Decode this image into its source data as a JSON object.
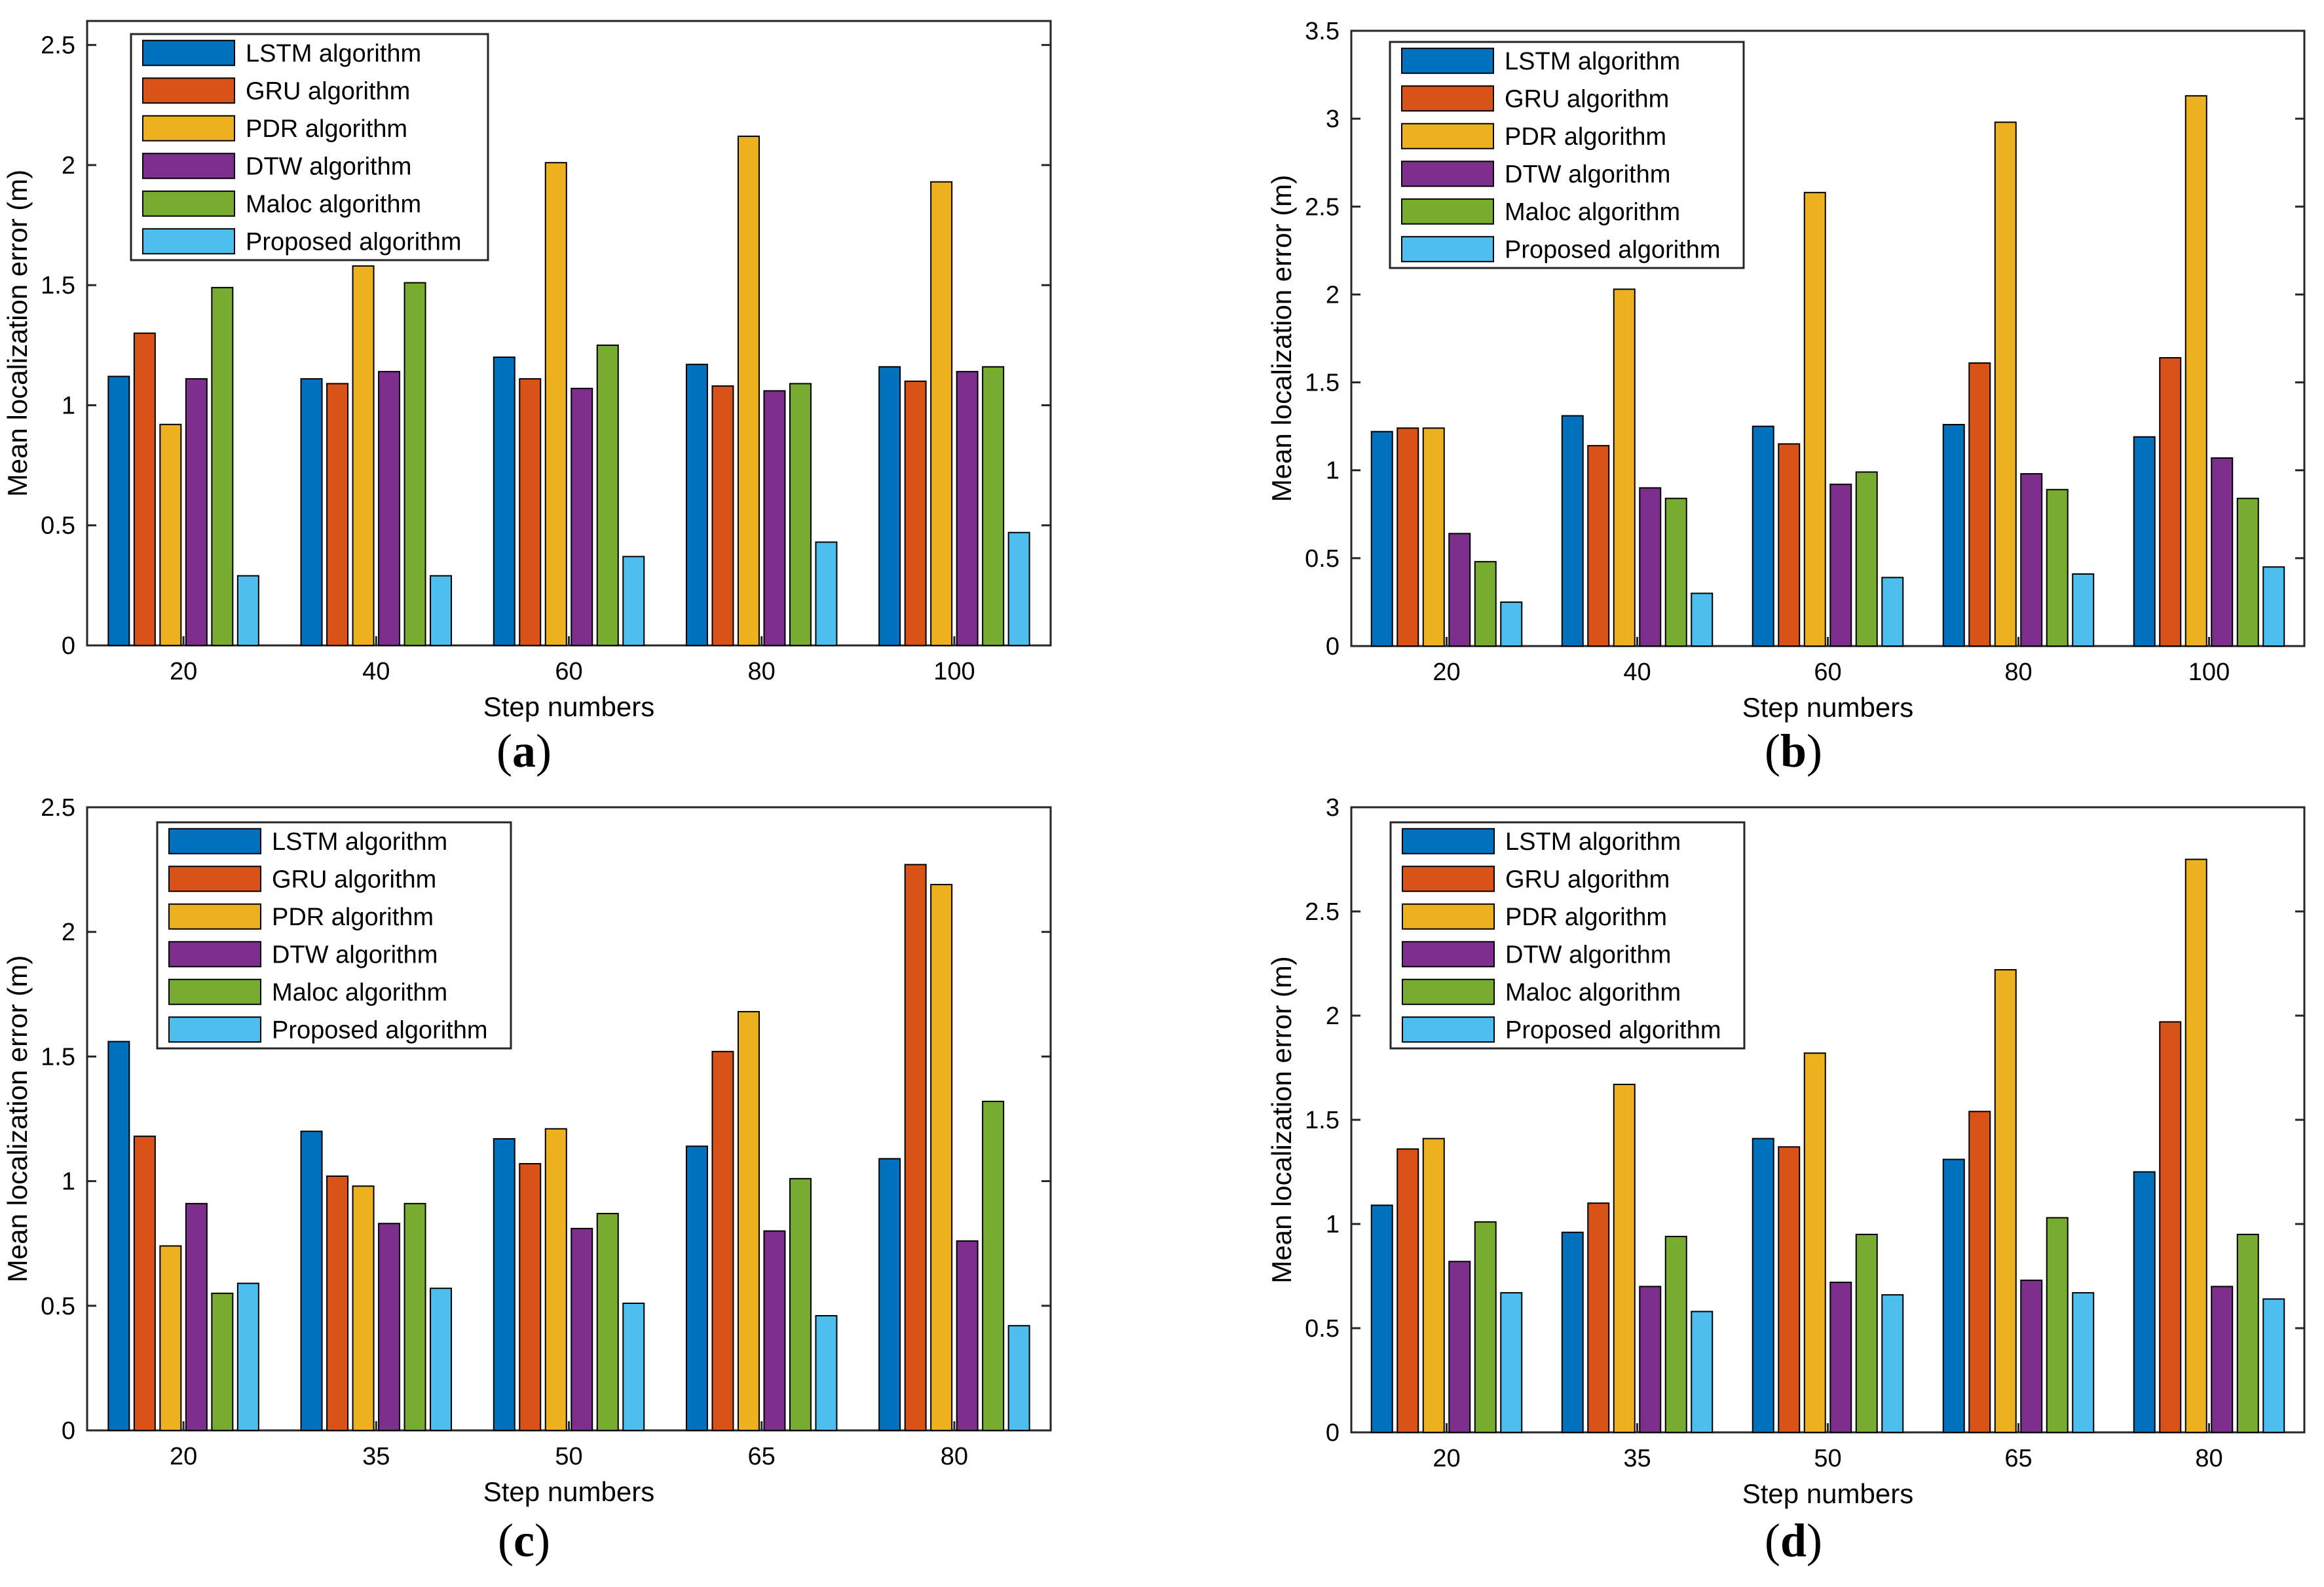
{
  "figure": {
    "colors": {
      "LSTM algorithm": "#0072BD",
      "GRU algorithm": "#D95319",
      "PDR algorithm": "#EDB120",
      "DTW algorithm": "#7E2F8E",
      "Maloc algorithm": "#77AC30",
      "Proposed algorithm": "#4DBEEE"
    }
  },
  "chart_data": [
    {
      "panel": "(a)",
      "type": "bar",
      "xlabel": "Step numbers",
      "ylabel": "Mean localization error (m)",
      "ylim": [
        0,
        2.6
      ],
      "yticks": [
        "0",
        "0.5",
        "1",
        "1.5",
        "2",
        "2.5"
      ],
      "ytick_values": [
        0,
        0.5,
        1,
        1.5,
        2,
        2.5
      ],
      "categories": [
        "20",
        "40",
        "60",
        "80",
        "100"
      ],
      "legend_position": "top-left",
      "series": [
        {
          "name": "LSTM algorithm",
          "values": [
            1.12,
            1.11,
            1.2,
            1.17,
            1.16
          ]
        },
        {
          "name": "GRU algorithm",
          "values": [
            1.3,
            1.09,
            1.11,
            1.08,
            1.1
          ]
        },
        {
          "name": "PDR algorithm",
          "values": [
            0.92,
            1.58,
            2.01,
            2.12,
            1.93
          ]
        },
        {
          "name": "DTW algorithm",
          "values": [
            1.11,
            1.14,
            1.07,
            1.06,
            1.14
          ]
        },
        {
          "name": "Maloc algorithm",
          "values": [
            1.49,
            1.51,
            1.25,
            1.09,
            1.16
          ]
        },
        {
          "name": "Proposed algorithm",
          "values": [
            0.29,
            0.29,
            0.37,
            0.43,
            0.47
          ]
        }
      ]
    },
    {
      "panel": "(b)",
      "type": "bar",
      "xlabel": "Step numbers",
      "ylabel": "Mean localization error (m)",
      "ylim": [
        0,
        3.5
      ],
      "yticks": [
        "0",
        "0.5",
        "1",
        "1.5",
        "2",
        "2.5",
        "3",
        "3.5"
      ],
      "ytick_values": [
        0,
        0.5,
        1,
        1.5,
        2,
        2.5,
        3,
        3.5
      ],
      "categories": [
        "20",
        "40",
        "60",
        "80",
        "100"
      ],
      "legend_position": "top-left",
      "series": [
        {
          "name": "LSTM algorithm",
          "values": [
            1.22,
            1.31,
            1.25,
            1.26,
            1.19
          ]
        },
        {
          "name": "GRU algorithm",
          "values": [
            1.24,
            1.14,
            1.15,
            1.61,
            1.64
          ]
        },
        {
          "name": "PDR algorithm",
          "values": [
            1.24,
            2.03,
            2.58,
            2.98,
            3.13
          ]
        },
        {
          "name": "DTW algorithm",
          "values": [
            0.64,
            0.9,
            0.92,
            0.98,
            1.07
          ]
        },
        {
          "name": "Maloc algorithm",
          "values": [
            0.48,
            0.84,
            0.99,
            0.89,
            0.84
          ]
        },
        {
          "name": "Proposed algorithm",
          "values": [
            0.25,
            0.3,
            0.39,
            0.41,
            0.45
          ]
        }
      ]
    },
    {
      "panel": "(c)",
      "type": "bar",
      "xlabel": "Step numbers",
      "ylabel": "Mean localization error (m)",
      "ylim": [
        0,
        2.5
      ],
      "yticks": [
        "0",
        "0.5",
        "1",
        "1.5",
        "2",
        "2.5"
      ],
      "ytick_values": [
        0,
        0.5,
        1,
        1.5,
        2,
        2.5
      ],
      "categories": [
        "20",
        "35",
        "50",
        "65",
        "80"
      ],
      "legend_position": "top-left",
      "series": [
        {
          "name": "LSTM algorithm",
          "values": [
            1.56,
            1.2,
            1.17,
            1.14,
            1.09
          ]
        },
        {
          "name": "GRU algorithm",
          "values": [
            1.18,
            1.02,
            1.07,
            1.52,
            2.27
          ]
        },
        {
          "name": "PDR algorithm",
          "values": [
            0.74,
            0.98,
            1.21,
            1.68,
            2.19
          ]
        },
        {
          "name": "DTW algorithm",
          "values": [
            0.91,
            0.83,
            0.81,
            0.8,
            0.76
          ]
        },
        {
          "name": "Maloc algorithm",
          "values": [
            0.55,
            0.91,
            0.87,
            1.01,
            1.32
          ]
        },
        {
          "name": "Proposed algorithm",
          "values": [
            0.59,
            0.57,
            0.51,
            0.46,
            0.42
          ]
        }
      ]
    },
    {
      "panel": "(d)",
      "type": "bar",
      "xlabel": "Step numbers",
      "ylabel": "Mean localization error (m)",
      "ylim": [
        0,
        3
      ],
      "yticks": [
        "0",
        "0.5",
        "1",
        "1.5",
        "2",
        "2.5",
        "3"
      ],
      "ytick_values": [
        0,
        0.5,
        1,
        1.5,
        2,
        2.5,
        3
      ],
      "categories": [
        "20",
        "35",
        "50",
        "65",
        "80"
      ],
      "legend_position": "top-left",
      "series": [
        {
          "name": "LSTM algorithm",
          "values": [
            1.09,
            0.96,
            1.41,
            1.31,
            1.25
          ]
        },
        {
          "name": "GRU algorithm",
          "values": [
            1.36,
            1.1,
            1.37,
            1.54,
            1.97
          ]
        },
        {
          "name": "PDR algorithm",
          "values": [
            1.41,
            1.67,
            1.82,
            2.22,
            2.75
          ]
        },
        {
          "name": "DTW algorithm",
          "values": [
            0.82,
            0.7,
            0.72,
            0.73,
            0.7
          ]
        },
        {
          "name": "Maloc algorithm",
          "values": [
            1.01,
            0.94,
            0.95,
            1.03,
            0.95
          ]
        },
        {
          "name": "Proposed algorithm",
          "values": [
            0.67,
            0.58,
            0.66,
            0.67,
            0.64
          ]
        }
      ]
    }
  ]
}
